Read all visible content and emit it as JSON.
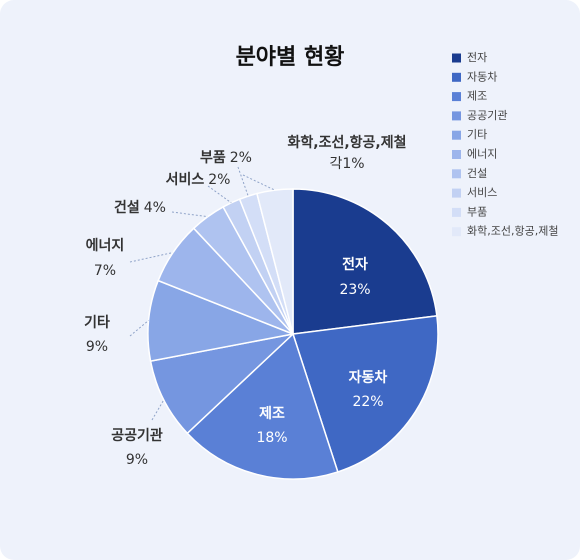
{
  "chart_data": {
    "type": "pie",
    "title": "분야별 현황",
    "categories": [
      "전자",
      "자동차",
      "제조",
      "공공기관",
      "기타",
      "에너지",
      "건설",
      "서비스",
      "부품",
      "화학,조선,항공,제철"
    ],
    "values": [
      23,
      22,
      18,
      9,
      9,
      7,
      4,
      2,
      2,
      4
    ],
    "value_labels": [
      "23%",
      "22%",
      "18%",
      "9%",
      "9%",
      "7%",
      "4%",
      "2%",
      "2%",
      "각1%"
    ],
    "colors": [
      "#1a3c8f",
      "#3f68c4",
      "#5a80d6",
      "#7596e0",
      "#88a6e6",
      "#9db5ec",
      "#afc3f0",
      "#c2d1f3",
      "#d3def7",
      "#e2e9f9"
    ],
    "legend": "top-right"
  }
}
